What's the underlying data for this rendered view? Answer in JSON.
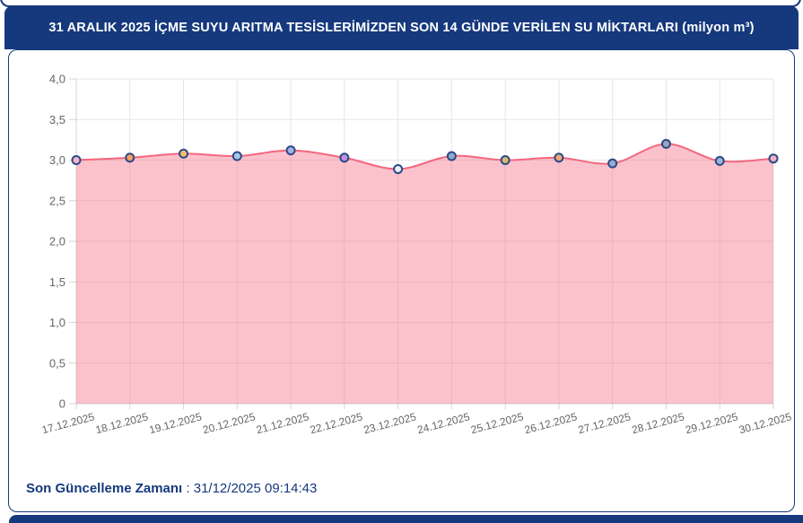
{
  "header": {
    "title": "31 ARALIK 2025 İÇME SUYU ARITMA TESİSLERİMİZDEN SON 14 GÜNDE VERİLEN SU MİKTARLARI (milyon m³)"
  },
  "footer": {
    "label": "Son Güncelleme Zamanı",
    "separator": " : ",
    "value": "31/12/2025 09:14:43"
  },
  "colors": {
    "navy": "#16397d",
    "grid": "#e6e6e6",
    "axis": "#d4d4d4",
    "tick_label": "#666666"
  },
  "chart_data": {
    "type": "area",
    "title": "",
    "xlabel": "",
    "ylabel": "",
    "grid": true,
    "legend": false,
    "categories": [
      "17.12.2025",
      "18.12.2025",
      "19.12.2025",
      "20.12.2025",
      "21.12.2025",
      "22.12.2025",
      "23.12.2025",
      "24.12.2025",
      "25.12.2025",
      "26.12.2025",
      "27.12.2025",
      "28.12.2025",
      "29.12.2025",
      "30.12.2025"
    ],
    "values": [
      3.0,
      3.03,
      3.08,
      3.05,
      3.12,
      3.03,
      2.89,
      3.05,
      3.0,
      3.03,
      2.96,
      3.2,
      2.99,
      3.02
    ],
    "ylim": [
      0,
      4
    ],
    "yticks": [
      0,
      0.5,
      1,
      1.5,
      2,
      2.5,
      3,
      3.5,
      4
    ],
    "ytick_labels": [
      "0",
      "0,5",
      "1,0",
      "1,5",
      "2,0",
      "2,5",
      "3,0",
      "3,5",
      "4,0"
    ],
    "line_color": "#f4677f",
    "fill_color": "rgba(244,103,127,0.40)",
    "marker_border_color": "#2c4a88",
    "point_colors": [
      "#f7b6c6",
      "#f2a064",
      "#f6bc6e",
      "#a9c9e8",
      "#9fb4e4",
      "#c38fdd",
      "#eef0f6",
      "#8fa9cb",
      "#d9b873",
      "#eeab76",
      "#97a9cf",
      "#98a5bd",
      "#9db3d6",
      "#f6afc0"
    ]
  }
}
